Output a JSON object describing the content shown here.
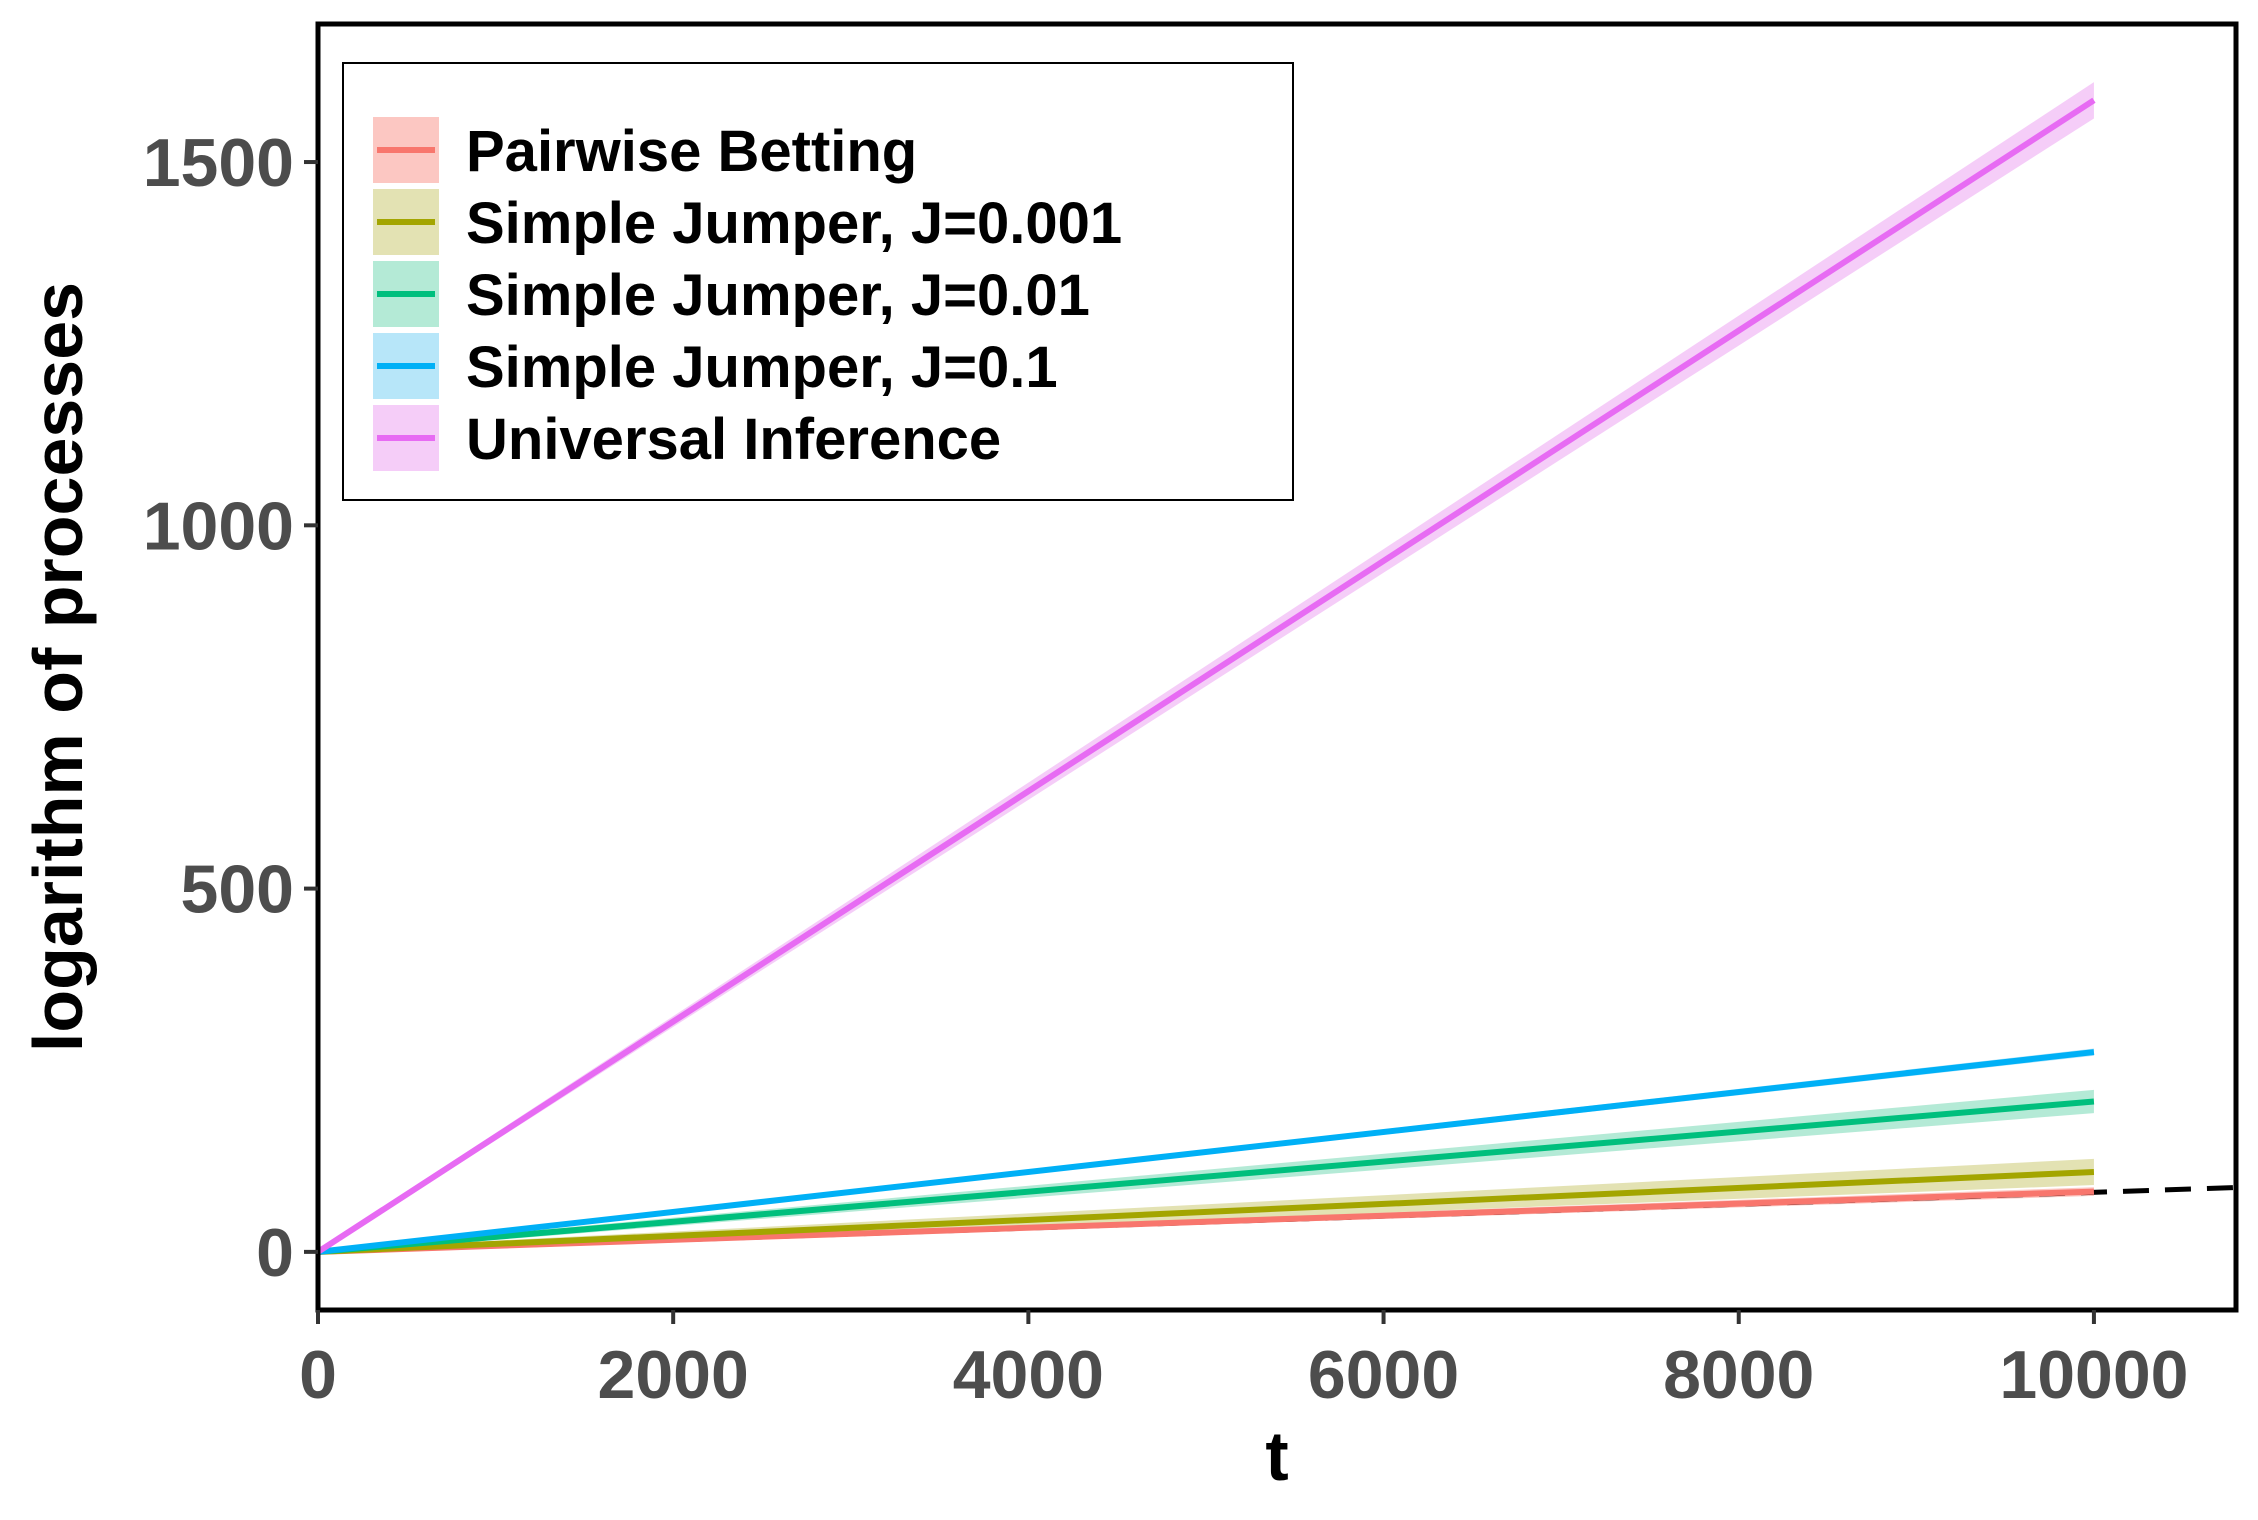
{
  "chart_data": {
    "type": "line",
    "xlabel": "t",
    "ylabel": "logarithm of processes",
    "xlim": [
      0,
      10800
    ],
    "ylim": [
      -80,
      1690
    ],
    "xticks": [
      0,
      2000,
      4000,
      6000,
      8000,
      10000
    ],
    "xtick_labels": [
      "0",
      "2000",
      "4000",
      "6000",
      "8000",
      "10000"
    ],
    "yticks": [
      0,
      500,
      1000,
      1500
    ],
    "ytick_labels": [
      "0",
      "500",
      "1000",
      "1500"
    ],
    "grid": false,
    "legend_position": "top-left",
    "x": [
      0,
      10000
    ],
    "series": [
      {
        "name": "Pairwise Betting",
        "color": "#F8766D",
        "band_color": "#FBB4AE",
        "values": [
          0,
          83
        ],
        "band": [
          2,
          6
        ]
      },
      {
        "name": "Simple Jumper, J=0.001",
        "color": "#A3A500",
        "band_color": "#D9D89A",
        "values": [
          0,
          110
        ],
        "band": [
          3,
          18
        ]
      },
      {
        "name": "Simple Jumper, J=0.01",
        "color": "#00BF7D",
        "band_color": "#9BE3C8",
        "values": [
          0,
          207
        ],
        "band": [
          3,
          16
        ]
      },
      {
        "name": "Simple Jumper, J=0.1",
        "color": "#00B0F6",
        "band_color": "#9FDDF7",
        "values": [
          0,
          275
        ],
        "band": [
          2,
          5
        ]
      },
      {
        "name": "Universal Inference",
        "color": "#E76BF3",
        "band_color": "#F2BCF6",
        "values": [
          0,
          1585
        ],
        "band": [
          3,
          25
        ]
      }
    ],
    "reference_line": {
      "style": "dashed",
      "color": "#000000",
      "slope": 0.0082,
      "intercept": 0
    }
  }
}
